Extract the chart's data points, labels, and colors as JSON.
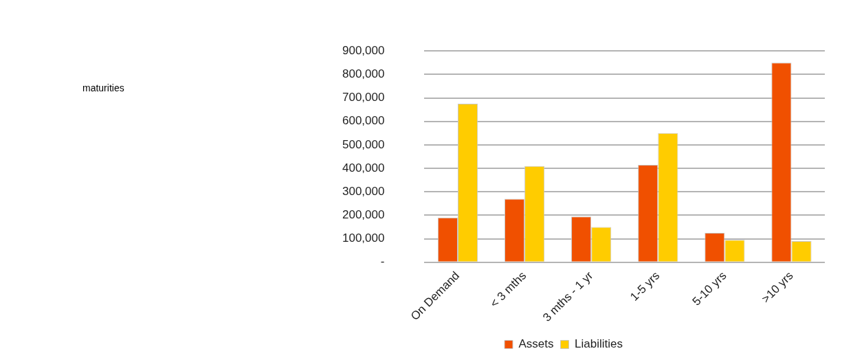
{
  "chart_data": {
    "type": "bar",
    "title": "maturities",
    "categories": [
      "On Demand",
      "< 3 mths",
      "3 mths - 1 yr",
      "1-5 yrs",
      "5-10 yrs",
      ">10 yrs"
    ],
    "series": [
      {
        "name": "Assets",
        "color": "#f05000",
        "values": [
          190000,
          270000,
          195000,
          415000,
          125000,
          850000
        ]
      },
      {
        "name": "Liabilities",
        "color": "#ffcc00",
        "values": [
          675000,
          410000,
          150000,
          550000,
          95000,
          90000
        ]
      }
    ],
    "ylim": [
      0,
      900000
    ],
    "yticks": [
      {
        "value": 0,
        "label": "-"
      },
      {
        "value": 100000,
        "label": "100,000"
      },
      {
        "value": 200000,
        "label": "200,000"
      },
      {
        "value": 300000,
        "label": "300,000"
      },
      {
        "value": 400000,
        "label": "400,000"
      },
      {
        "value": 500000,
        "label": "500,000"
      },
      {
        "value": 600000,
        "label": "600,000"
      },
      {
        "value": 700000,
        "label": "700,000"
      },
      {
        "value": 800000,
        "label": "800,000"
      },
      {
        "value": 900000,
        "label": "900,000"
      }
    ],
    "grid": "y",
    "legend": "bottom"
  }
}
